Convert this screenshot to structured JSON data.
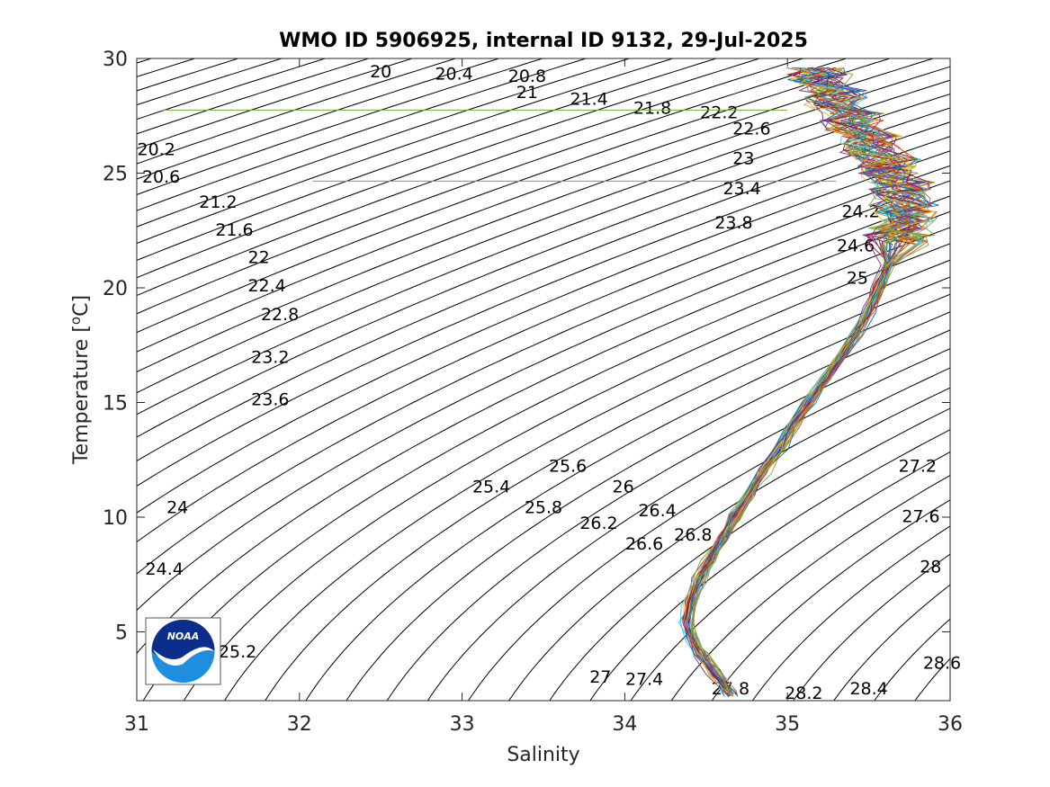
{
  "chart_data": {
    "type": "line",
    "title": "WMO ID 5906925, internal ID 9132, 29-Jul-2025",
    "xlabel": "Salinity",
    "ylabel": "Temperature [",
    "ylabel_unit_sup": "o",
    "ylabel_unit": "C]",
    "xlim": [
      31,
      36
    ],
    "ylim": [
      2,
      30
    ],
    "xticks": [
      31,
      32,
      33,
      34,
      35,
      36
    ],
    "xtick_labels": [
      "31",
      "32",
      "33",
      "34",
      "35",
      "36"
    ],
    "yticks": [
      5,
      10,
      15,
      20,
      25,
      30
    ],
    "ytick_labels": [
      "5",
      "10",
      "15",
      "20",
      "25",
      "30"
    ],
    "grid": false,
    "density_contour_interval": 0.2,
    "density_contour_labels": [
      {
        "label": "20",
        "s": 32.5,
        "t": 29.4
      },
      {
        "label": "20.4",
        "s": 32.95,
        "t": 29.3
      },
      {
        "label": "20.8",
        "s": 33.4,
        "t": 29.2
      },
      {
        "label": "21",
        "s": 33.4,
        "t": 28.5
      },
      {
        "label": "21.4",
        "s": 33.78,
        "t": 28.2
      },
      {
        "label": "21.8",
        "s": 34.17,
        "t": 27.8
      },
      {
        "label": "22.2",
        "s": 34.58,
        "t": 27.6
      },
      {
        "label": "22.6",
        "s": 34.78,
        "t": 26.9
      },
      {
        "label": "23",
        "s": 34.73,
        "t": 25.6
      },
      {
        "label": "23.4",
        "s": 34.72,
        "t": 24.3
      },
      {
        "label": "23.8",
        "s": 34.67,
        "t": 22.8
      },
      {
        "label": "24.2",
        "s": 35.45,
        "t": 23.3
      },
      {
        "label": "24.6",
        "s": 35.42,
        "t": 21.8
      },
      {
        "label": "25",
        "s": 35.43,
        "t": 20.4
      },
      {
        "label": "20.2",
        "s": 31.12,
        "t": 26.0
      },
      {
        "label": "20.6",
        "s": 31.15,
        "t": 24.8
      },
      {
        "label": "21.2",
        "s": 31.5,
        "t": 23.7
      },
      {
        "label": "21.6",
        "s": 31.6,
        "t": 22.5
      },
      {
        "label": "22",
        "s": 31.75,
        "t": 21.3
      },
      {
        "label": "22.4",
        "s": 31.8,
        "t": 20.05
      },
      {
        "label": "22.8",
        "s": 31.88,
        "t": 18.8
      },
      {
        "label": "23.2",
        "s": 31.82,
        "t": 16.95
      },
      {
        "label": "23.6",
        "s": 31.82,
        "t": 15.1
      },
      {
        "label": "24",
        "s": 31.25,
        "t": 10.4
      },
      {
        "label": "24.4",
        "s": 31.17,
        "t": 7.7
      },
      {
        "label": "25.2",
        "s": 31.62,
        "t": 4.1
      },
      {
        "label": "25.4",
        "s": 33.18,
        "t": 11.3
      },
      {
        "label": "25.6",
        "s": 33.65,
        "t": 12.2
      },
      {
        "label": "25.8",
        "s": 33.5,
        "t": 10.4
      },
      {
        "label": "26",
        "s": 33.99,
        "t": 11.3
      },
      {
        "label": "26.2",
        "s": 33.84,
        "t": 9.7
      },
      {
        "label": "26.4",
        "s": 34.2,
        "t": 10.25
      },
      {
        "label": "26.6",
        "s": 34.12,
        "t": 8.8
      },
      {
        "label": "26.8",
        "s": 34.42,
        "t": 9.2
      },
      {
        "label": "27",
        "s": 33.85,
        "t": 3.0
      },
      {
        "label": "27.2",
        "s": 35.8,
        "t": 12.2
      },
      {
        "label": "27.4",
        "s": 34.12,
        "t": 2.9
      },
      {
        "label": "27.6",
        "s": 35.82,
        "t": 10.0
      },
      {
        "label": "27.8",
        "s": 34.65,
        "t": 2.5
      },
      {
        "label": "28",
        "s": 35.88,
        "t": 7.8
      },
      {
        "label": "28.2",
        "s": 35.1,
        "t": 2.3
      },
      {
        "label": "28.4",
        "s": 35.5,
        "t": 2.5
      },
      {
        "label": "28.6",
        "s": 35.95,
        "t": 3.6
      }
    ],
    "profile_mean_ts": [
      [
        34.65,
        2.3
      ],
      [
        34.55,
        3.2
      ],
      [
        34.47,
        4.0
      ],
      [
        34.42,
        4.6
      ],
      [
        34.38,
        5.4
      ],
      [
        34.4,
        6.3
      ],
      [
        34.46,
        7.3
      ],
      [
        34.52,
        8.2
      ],
      [
        34.6,
        9.1
      ],
      [
        34.68,
        10.0
      ],
      [
        34.77,
        11.0
      ],
      [
        34.85,
        12.0
      ],
      [
        34.95,
        13.0
      ],
      [
        35.03,
        14.0
      ],
      [
        35.13,
        15.0
      ],
      [
        35.23,
        16.0
      ],
      [
        35.33,
        17.0
      ],
      [
        35.42,
        18.0
      ],
      [
        35.5,
        19.0
      ],
      [
        35.56,
        20.0
      ],
      [
        35.62,
        21.0
      ],
      [
        35.68,
        22.0
      ],
      [
        35.72,
        23.0
      ],
      [
        35.7,
        24.0
      ],
      [
        35.62,
        25.0
      ],
      [
        35.52,
        26.0
      ],
      [
        35.4,
        27.0
      ],
      [
        35.28,
        28.0
      ],
      [
        35.18,
        29.0
      ]
    ],
    "profile_count": 40,
    "stray_lines": [
      {
        "s1": 31.16,
        "s2": 35.0,
        "t": 27.75,
        "color": "#77AC30"
      },
      {
        "s1": 32.08,
        "s2": 35.3,
        "t": 24.65,
        "color": "#77AC30"
      }
    ],
    "series_colors": [
      "#0072BD",
      "#D95319",
      "#EDB120",
      "#7E2F8E",
      "#77AC30",
      "#4DBEEE",
      "#A2142F"
    ],
    "axis_color": "#262626",
    "contour_color": "#000000"
  },
  "logo": {
    "name": "NOAA logo",
    "text": "NOAA",
    "colors": {
      "navy": "#0B2D8C",
      "sky": "#1E8FE0",
      "white": "#ffffff"
    }
  }
}
